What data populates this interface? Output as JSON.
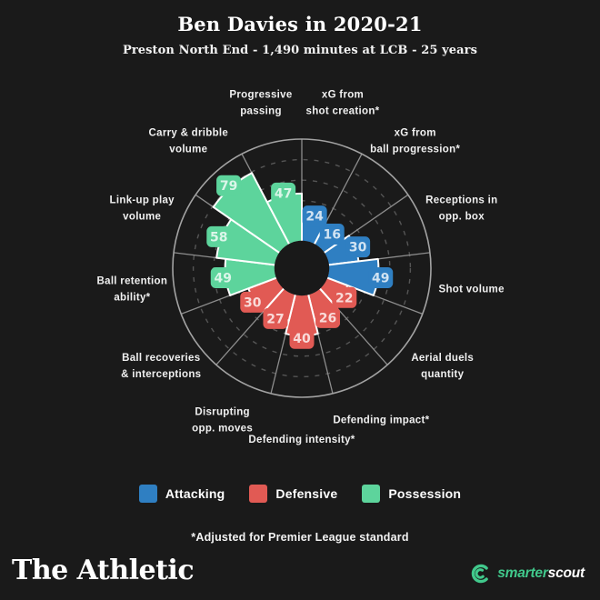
{
  "header": {
    "title": "Ben Davies in 2020-21",
    "subtitle": "Preston North End - 1,490 minutes at LCB - 25 years"
  },
  "chart_data": {
    "type": "polar_bar",
    "title": "Ben Davies in 2020-21",
    "subtitle": "Preston North End - 1,490 minutes at LCB - 25 years",
    "scale": {
      "min": 0,
      "max": 100,
      "grid_rings": [
        20,
        40,
        60,
        80
      ],
      "grid_style": "dashed"
    },
    "legend_position": "bottom",
    "groups": {
      "Attacking": "#2f7fc2",
      "Defensive": "#e15a54",
      "Possession": "#5dd49c"
    },
    "metrics": [
      {
        "label": "xG from shot creation*",
        "lines": [
          "xG from",
          "shot creation*"
        ],
        "value": 24,
        "group": "Attacking"
      },
      {
        "label": "xG from ball progression*",
        "lines": [
          "xG from",
          "ball progression*"
        ],
        "value": 16,
        "group": "Attacking"
      },
      {
        "label": "Receptions in opp. box",
        "lines": [
          "Receptions in",
          "opp. box"
        ],
        "value": 30,
        "group": "Attacking"
      },
      {
        "label": "Shot volume",
        "lines": [
          "Shot volume"
        ],
        "value": 49,
        "group": "Attacking"
      },
      {
        "label": "Aerial duels quantity",
        "lines": [
          "Aerial duels",
          "quantity"
        ],
        "value": 22,
        "group": "Defensive"
      },
      {
        "label": "Defending impact*",
        "lines": [
          "Defending impact*"
        ],
        "value": 26,
        "group": "Defensive"
      },
      {
        "label": "Defending intensity*",
        "lines": [
          "Defending intensity*"
        ],
        "value": 40,
        "group": "Defensive"
      },
      {
        "label": "Disrupting opp. moves",
        "lines": [
          "Disrupting",
          "opp. moves"
        ],
        "value": 27,
        "group": "Defensive"
      },
      {
        "label": "Ball recoveries & interceptions",
        "lines": [
          "Ball recoveries",
          "& interceptions"
        ],
        "value": 30,
        "group": "Defensive"
      },
      {
        "label": "Ball retention ability*",
        "lines": [
          "Ball retention",
          "ability*"
        ],
        "value": 49,
        "group": "Possession"
      },
      {
        "label": "Link-up play volume",
        "lines": [
          "Link-up play",
          "volume"
        ],
        "value": 58,
        "group": "Possession"
      },
      {
        "label": "Carry & dribble volume",
        "lines": [
          "Carry & dribble",
          "volume"
        ],
        "value": 79,
        "group": "Possession"
      },
      {
        "label": "Progressive passing",
        "lines": [
          "Progressive",
          "passing"
        ],
        "value": 47,
        "group": "Possession"
      }
    ]
  },
  "legend": {
    "items": [
      "Attacking",
      "Defensive",
      "Possession"
    ]
  },
  "footnote": "*Adjusted for Premier League standard",
  "branding": {
    "athletic": "The Athletic",
    "smarter": "smarter",
    "scout": "scout"
  },
  "colors": {
    "background": "#1a1a1a",
    "attacking": "#2f7fc2",
    "defensive": "#e15a54",
    "possession": "#5dd49c",
    "smarterscout_green": "#41c98c"
  }
}
